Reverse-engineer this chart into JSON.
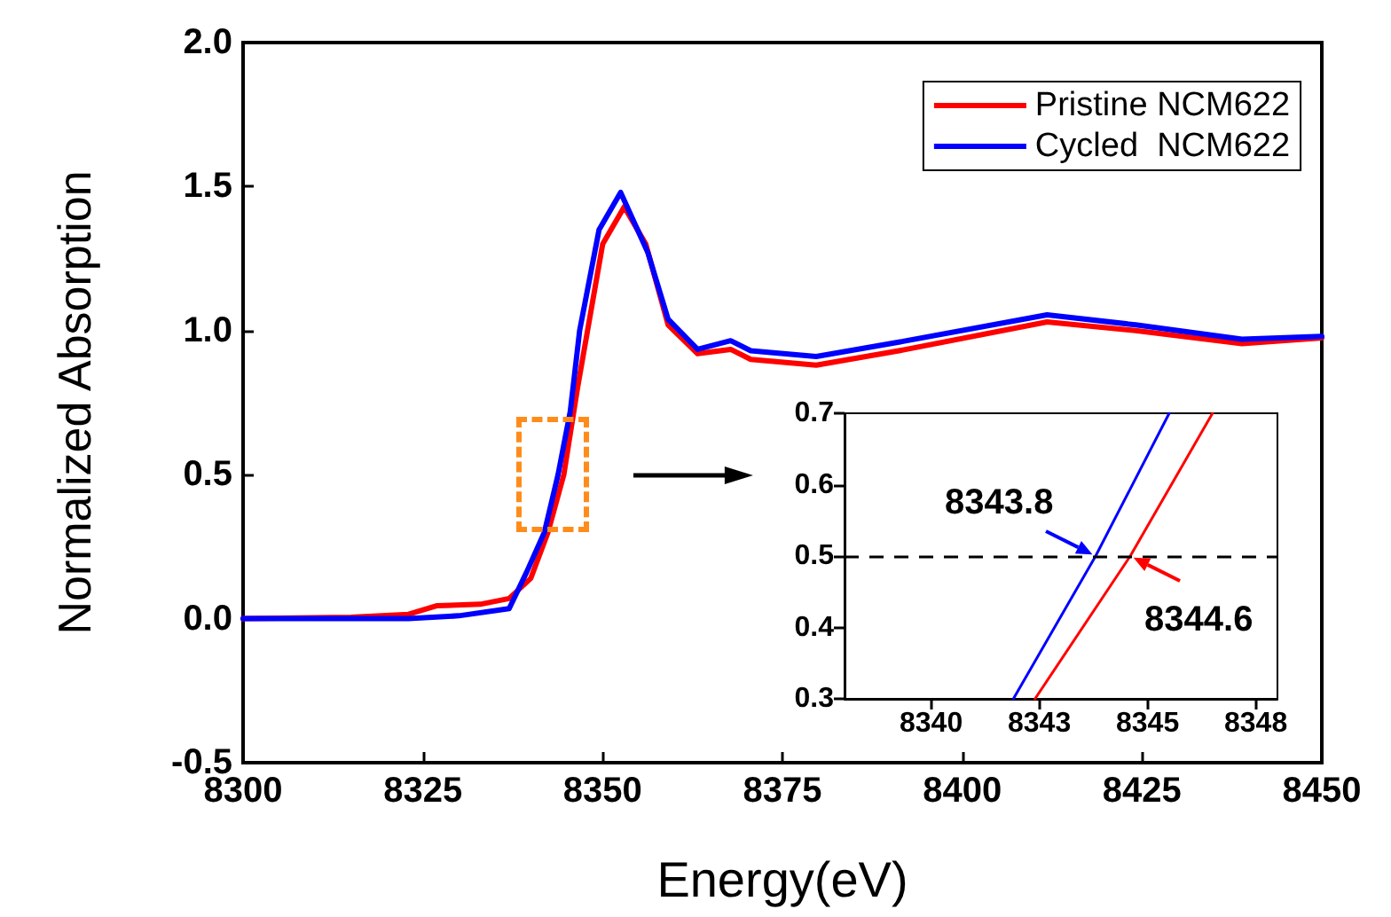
{
  "chart_data": [
    {
      "type": "line",
      "xlabel": "Energy(eV)",
      "ylabel": "Normalized Absorption",
      "xlim": [
        8300,
        8450
      ],
      "ylim": [
        -0.5,
        2.0
      ],
      "xticks": [
        8300,
        8325,
        8350,
        8375,
        8400,
        8425,
        8450
      ],
      "yticks": [
        -0.5,
        {
          "value": 0,
          "label": "0.0"
        },
        0.5,
        {
          "value": 1,
          "label": "1.0"
        },
        1.5,
        {
          "value": 2,
          "label": "2.0"
        }
      ],
      "grid": false,
      "legend": "top right",
      "marker": "none",
      "line_style": "solid",
      "series": [
        {
          "name": "Pristine NCM622",
          "color": "#ff0000",
          "x": [
            8300,
            8315,
            8323,
            8327,
            8333,
            8337,
            8340,
            8342.4,
            8344.6,
            8346.5,
            8347.9,
            8350,
            8353,
            8356,
            8359.1,
            8363.2,
            8367.8,
            8370.6,
            8379.7,
            8391.2,
            8411.8,
            8424.1,
            8438.9,
            8450
          ],
          "values": [
            0,
            0.005,
            0.015,
            0.045,
            0.05,
            0.07,
            0.14,
            0.3,
            0.5,
            0.8,
            1.0,
            1.3,
            1.43,
            1.3,
            1.02,
            0.92,
            0.935,
            0.9,
            0.88,
            0.93,
            1.03,
            1.0,
            0.955,
            0.975
          ]
        },
        {
          "name": "Cycled  NCM622",
          "color": "#0000ff",
          "x": [
            8300,
            8323,
            8330,
            8337,
            8339.4,
            8341.9,
            8343.8,
            8345.5,
            8346.8,
            8349.5,
            8352.5,
            8356.3,
            8359.1,
            8363.2,
            8367.8,
            8370.6,
            8379.7,
            8391.2,
            8411.8,
            8424.1,
            8438.9,
            8450
          ],
          "values": [
            0,
            0,
            0.01,
            0.035,
            0.16,
            0.3,
            0.5,
            0.72,
            1.0,
            1.35,
            1.48,
            1.27,
            1.04,
            0.935,
            0.965,
            0.93,
            0.91,
            0.96,
            1.055,
            1.02,
            0.97,
            0.98
          ]
        }
      ]
    },
    {
      "type": "line",
      "xlim": [
        8338,
        8348
      ],
      "ylim": [
        0.3,
        0.7
      ],
      "xticks": [
        8340,
        {
          "value": 8342.5,
          "label": "8343"
        },
        8345,
        {
          "value": 8347.5,
          "label": "8348"
        }
      ],
      "yticks": [
        0.3,
        0.4,
        0.5,
        0.6,
        0.7
      ],
      "grid": false,
      "legend": false,
      "marker": "none",
      "line_style": "solid",
      "series": [
        {
          "color": "#ff0000",
          "x": [
            8342.4,
            8344.6,
            8346.5
          ],
          "values": [
            0.3,
            0.5,
            0.7
          ]
        },
        {
          "color": "#0000ff",
          "x": [
            8341.9,
            8343.8,
            8345.5
          ],
          "values": [
            0.3,
            0.5,
            0.7
          ]
        }
      ],
      "ref_lines": [
        {
          "axis": "y",
          "value": 0.5,
          "color": "#000000",
          "line_style": "dashed"
        }
      ],
      "annotations": [
        {
          "text": "8343.8",
          "x": 8343.8,
          "y": 0.5
        },
        {
          "text": "8344.6",
          "x": 8344.6,
          "y": 0.5
        }
      ]
    }
  ]
}
